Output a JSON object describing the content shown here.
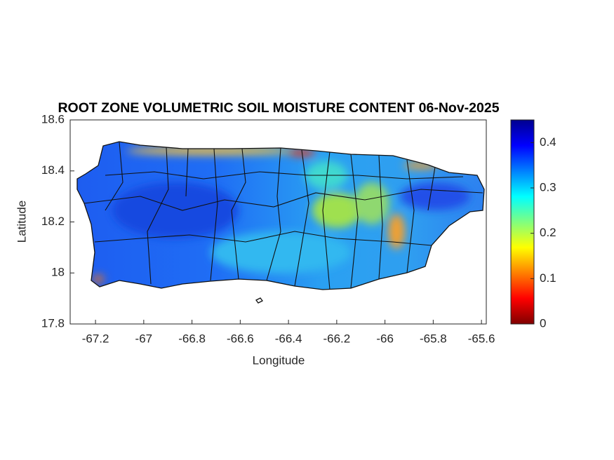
{
  "chart_data": {
    "type": "map",
    "title": "ROOT ZONE VOLUMETRIC SOIL MOISTURE CONTENT 06-Nov-2025",
    "xlabel": "Longitude",
    "ylabel": "Latitude",
    "xlim": [
      -67.305,
      -65.58
    ],
    "xticks": [
      -67.2,
      -67,
      -66.8,
      -66.6,
      -66.4,
      -66.2,
      -66,
      -65.8,
      -65.6
    ],
    "ylim": [
      17.8,
      18.6
    ],
    "yticks": [
      17.8,
      18,
      18.2,
      18.4,
      18.6
    ],
    "colorbar": {
      "lim": [
        0,
        0.45
      ],
      "ticks": [
        0,
        0.1,
        0.2,
        0.3,
        0.4
      ],
      "colormap": "jet",
      "reversed": true
    }
  }
}
